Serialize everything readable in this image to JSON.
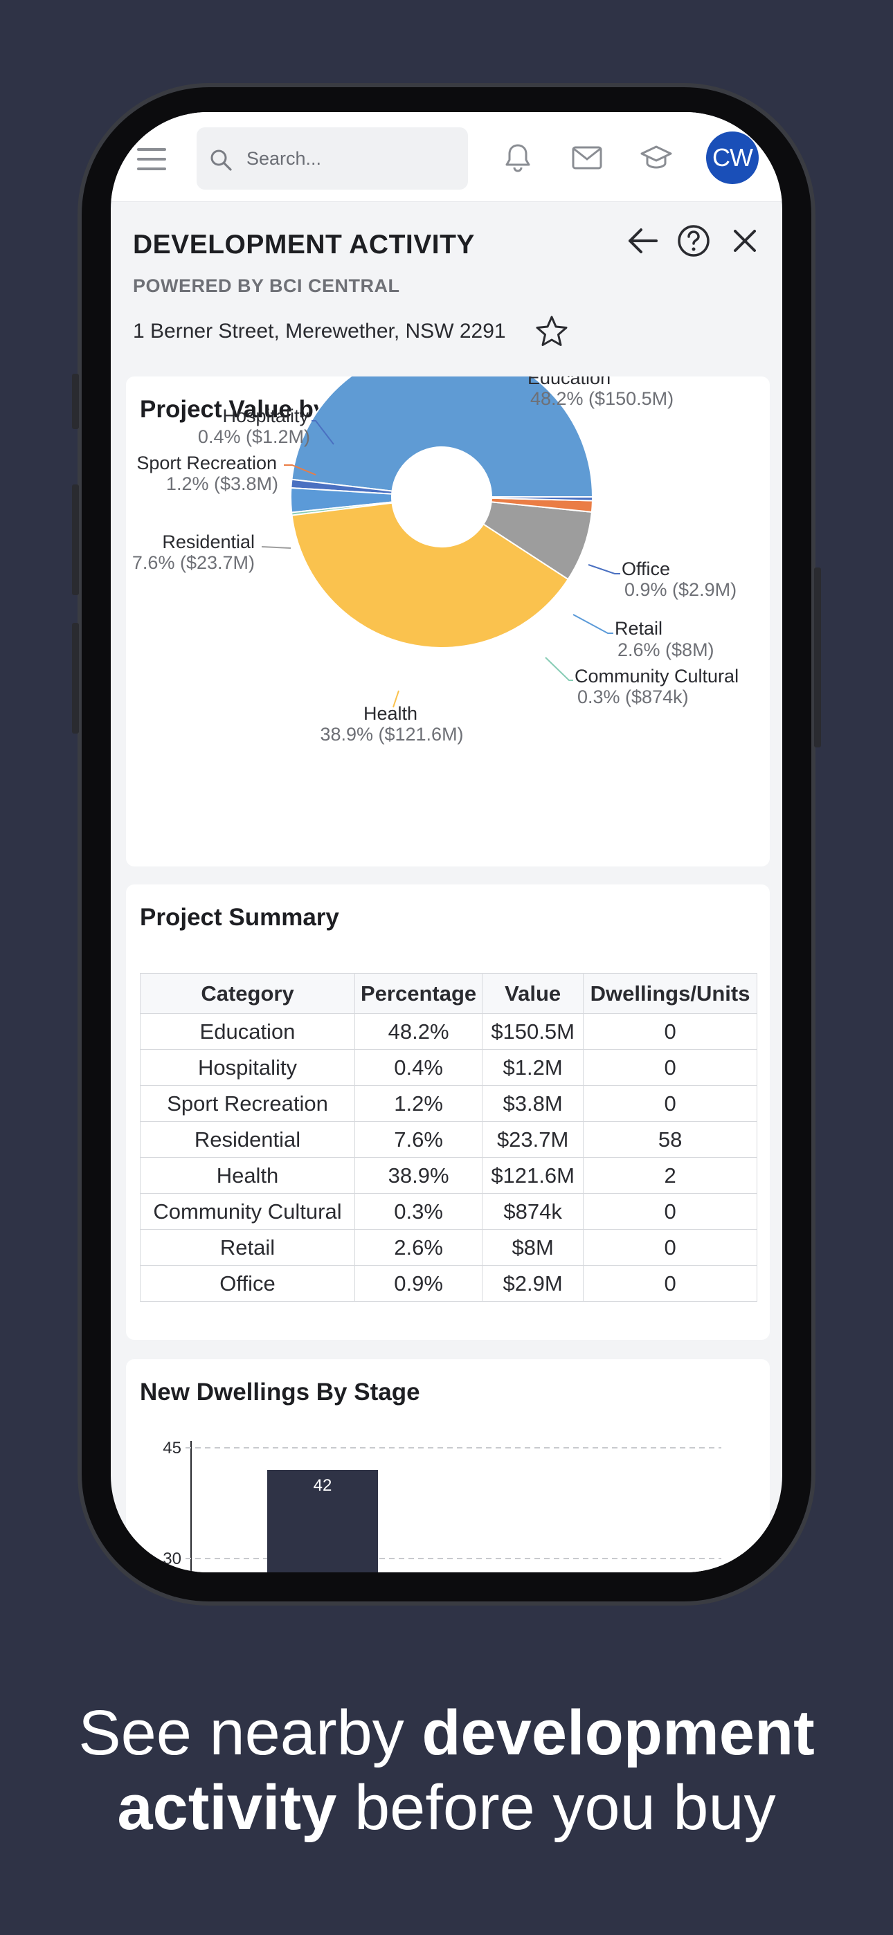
{
  "topbar": {
    "search_placeholder": "Search...",
    "avatar_initials": "CW"
  },
  "header": {
    "title": "DEVELOPMENT ACTIVITY",
    "subtitle": "POWERED BY BCI CENTRAL",
    "address": "1 Berner Street, Merewether, NSW 2291"
  },
  "pie_card": {
    "title": "Project Value by Category"
  },
  "summary_card": {
    "title": "Project Summary",
    "columns": [
      "Category",
      "Percentage",
      "Value",
      "Dwellings/Units"
    ],
    "rows": [
      [
        "Education",
        "48.2%",
        "$150.5M",
        "0"
      ],
      [
        "Hospitality",
        "0.4%",
        "$1.2M",
        "0"
      ],
      [
        "Sport Recreation",
        "1.2%",
        "$3.8M",
        "0"
      ],
      [
        "Residential",
        "7.6%",
        "$23.7M",
        "58"
      ],
      [
        "Health",
        "38.9%",
        "$121.6M",
        "2"
      ],
      [
        "Community Cultural",
        "0.3%",
        "$874k",
        "0"
      ],
      [
        "Retail",
        "2.6%",
        "$8M",
        "0"
      ],
      [
        "Office",
        "0.9%",
        "$2.9M",
        "0"
      ]
    ]
  },
  "bar_card": {
    "title": "New Dwellings By Stage"
  },
  "tagline": {
    "part1": "See nearby ",
    "bold1": "development",
    "bold2": "activity",
    "part2": " before you buy"
  },
  "chart_data": [
    {
      "type": "pie",
      "title": "Project Value by Category",
      "categories": [
        "Education",
        "Office",
        "Retail",
        "Community Cultural",
        "Health",
        "Residential",
        "Sport Recreation",
        "Hospitality"
      ],
      "values": [
        48.2,
        0.9,
        2.6,
        0.3,
        38.9,
        7.6,
        1.2,
        0.4
      ],
      "value_labels": [
        "48.2% ($150.5M)",
        "0.9% ($2.9M)",
        "2.6% ($8M)",
        "0.3% ($874k)",
        "38.9% ($121.6M)",
        "7.6% ($23.7M)",
        "1.2% ($3.8M)",
        "0.4% ($1.2M)"
      ],
      "colors": [
        "#5f9bd4",
        "#4a70c1",
        "#5b9ad8",
        "#87ccb5",
        "#fac24e",
        "#9d9d9d",
        "#ea7d45",
        "#4a70c1"
      ],
      "donut": true
    },
    {
      "type": "bar",
      "title": "New Dwellings By Stage",
      "values": [
        42
      ],
      "bar_labels": [
        "42"
      ],
      "ytick_labels": [
        "45",
        "30"
      ],
      "color": "#2f3346",
      "grid": true
    }
  ]
}
